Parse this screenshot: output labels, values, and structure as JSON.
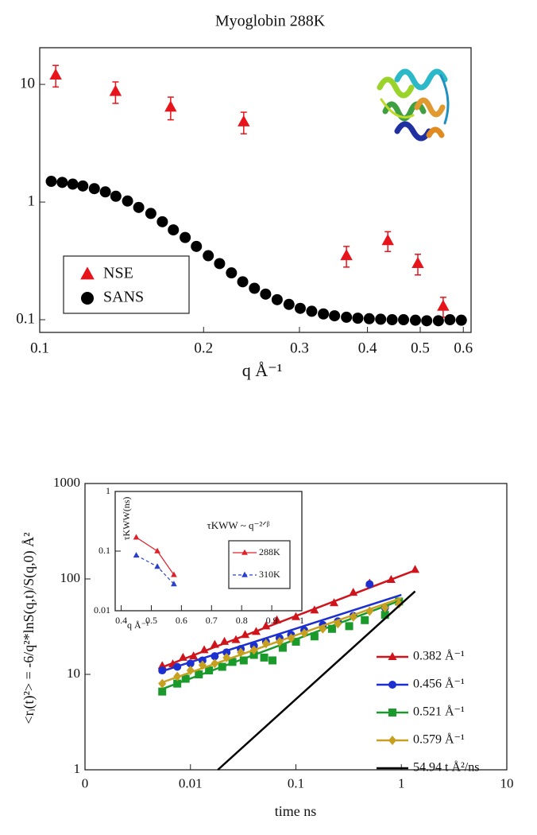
{
  "chart_data": [
    {
      "type": "scatter",
      "title": "Myoglobin 288K",
      "xlabel": "q  Å⁻¹",
      "xscale": "log",
      "yscale": "log",
      "xlim": [
        0.1,
        0.62
      ],
      "ylim": [
        0.078,
        20.5
      ],
      "xticks": [
        0.1,
        0.2,
        0.3,
        0.4,
        0.5,
        0.6
      ],
      "yticks": [
        0.1,
        1,
        10
      ],
      "legend": "lower left",
      "series": [
        {
          "name": "NSE",
          "color": "#e8141b",
          "marker": "triangle",
          "x": [
            0.107,
            0.1378,
            0.174,
            0.237,
            0.366,
            0.436,
            0.495,
            0.551
          ],
          "values": [
            12,
            8.7,
            6.4,
            4.8,
            0.35,
            0.47,
            0.3,
            0.13
          ],
          "errors": [
            2.5,
            1.8,
            1.4,
            1.0,
            0.07,
            0.09,
            0.06,
            0.025
          ]
        },
        {
          "name": "SANS",
          "color": "#000000",
          "marker": "circle",
          "x": [
            0.105,
            0.11,
            0.115,
            0.12,
            0.126,
            0.132,
            0.138,
            0.145,
            0.152,
            0.16,
            0.168,
            0.176,
            0.185,
            0.194,
            0.204,
            0.214,
            0.225,
            0.236,
            0.248,
            0.26,
            0.273,
            0.287,
            0.301,
            0.316,
            0.332,
            0.348,
            0.366,
            0.384,
            0.403,
            0.423,
            0.444,
            0.466,
            0.49,
            0.514,
            0.54,
            0.567,
            0.595
          ],
          "values": [
            1.5,
            1.47,
            1.42,
            1.37,
            1.3,
            1.22,
            1.12,
            1.02,
            0.9,
            0.8,
            0.68,
            0.58,
            0.5,
            0.42,
            0.35,
            0.3,
            0.25,
            0.21,
            0.185,
            0.165,
            0.148,
            0.135,
            0.125,
            0.118,
            0.112,
            0.108,
            0.105,
            0.103,
            0.102,
            0.101,
            0.1,
            0.1,
            0.099,
            0.098,
            0.098,
            0.1,
            0.099
          ]
        }
      ]
    },
    {
      "type": "scatter",
      "xlabel": "time ns",
      "ylabel": "<rᵢ(t)²> = -6/q²*lnS(q,t)/S(q,0) Å²",
      "xscale": "log",
      "yscale": "log",
      "xlim": [
        0.001,
        10
      ],
      "ylim": [
        1,
        1000
      ],
      "xticks": [
        {
          "value": 0.001,
          "label": "0"
        },
        0.01,
        0.1,
        1,
        10
      ],
      "yticks": [
        1,
        10,
        100,
        1000
      ],
      "legend": "lower right",
      "series": [
        {
          "name": "0.382 Å⁻¹",
          "color": "#d0141b",
          "marker": "triangle",
          "x": [
            0.0054,
            0.0068,
            0.0085,
            0.0107,
            0.0135,
            0.017,
            0.021,
            0.027,
            0.033,
            0.042,
            0.052,
            0.066,
            0.1,
            0.15,
            0.23,
            0.35,
            0.5,
            0.8,
            1.35
          ],
          "values": [
            12.3,
            12.8,
            15,
            15.5,
            18,
            20.5,
            22,
            23,
            26,
            28,
            32,
            37,
            40,
            47,
            56,
            72,
            90,
            98,
            125
          ],
          "fit_x": [
            0.005,
            1.4
          ],
          "fit_values": [
            11.5,
            125
          ]
        },
        {
          "name": "0.456 Å⁻¹",
          "color": "#1c2fd0",
          "marker": "circle",
          "x": [
            0.0054,
            0.0075,
            0.01,
            0.013,
            0.017,
            0.022,
            0.03,
            0.04,
            0.052,
            0.07,
            0.09,
            0.12,
            0.18,
            0.25,
            0.35,
            0.5,
            0.7,
            0.95
          ],
          "values": [
            11,
            12,
            13,
            14,
            15.5,
            17,
            18.5,
            20,
            22,
            24,
            26,
            29,
            33,
            36,
            41,
            88,
            50,
            58
          ],
          "fit_x": [
            0.005,
            1.0
          ],
          "fit_values": [
            10.5,
            68
          ]
        },
        {
          "name": "0.521 Å⁻¹",
          "color": "#1a9a2a",
          "marker": "square",
          "x": [
            0.0054,
            0.0075,
            0.009,
            0.012,
            0.015,
            0.02,
            0.025,
            0.032,
            0.04,
            0.05,
            0.06,
            0.075,
            0.1,
            0.15,
            0.22,
            0.32,
            0.45,
            0.7,
            0.95
          ],
          "values": [
            6.6,
            8,
            9,
            10,
            11,
            12,
            13.5,
            14,
            16,
            15,
            14,
            19,
            22,
            25,
            30,
            32,
            37,
            42,
            58
          ],
          "fit_x": [
            0.005,
            1.0
          ],
          "fit_values": [
            6.8,
            60
          ]
        },
        {
          "name": "0.579 Å⁻¹",
          "color": "#c8a020",
          "marker": "diamond",
          "x": [
            0.0054,
            0.0075,
            0.01,
            0.013,
            0.017,
            0.022,
            0.03,
            0.04,
            0.052,
            0.07,
            0.09,
            0.12,
            0.18,
            0.25,
            0.35,
            0.5,
            0.7,
            0.95
          ],
          "values": [
            8,
            9.5,
            11,
            12.5,
            13,
            15,
            17,
            18,
            21,
            22,
            24,
            27,
            30,
            34,
            40,
            46,
            50,
            55
          ],
          "fit_x": [
            0.005,
            1.0
          ],
          "fit_values": [
            8,
            63
          ]
        },
        {
          "name": "54.94 t Å²/ns",
          "color": "#000000",
          "marker": "none",
          "x": [
            0.0182,
            1.35
          ],
          "values": [
            1,
            74.17
          ]
        }
      ]
    },
    {
      "type": "scatter",
      "xlabel": "q Å⁻¹",
      "ylabel": "τKWW(ns)",
      "annotation": "τKWW ~ q⁻²ᐟᵝ",
      "xscale": "linear",
      "yscale": "log",
      "xlim": [
        0.38,
        1.0
      ],
      "ylim": [
        0.01,
        1
      ],
      "xticks": [
        0.4,
        0.5,
        0.6,
        0.7,
        0.8,
        0.9,
        1
      ],
      "yticks": [
        0.01,
        0.1,
        1
      ],
      "legend": "center right",
      "series": [
        {
          "name": "288K",
          "color": "#e0202a",
          "marker": "triangle",
          "connect": "solid",
          "x": [
            0.45,
            0.52,
            0.575
          ],
          "values": [
            0.17,
            0.1,
            0.04
          ]
        },
        {
          "name": "310K",
          "color": "#2a3fd0",
          "marker": "triangle",
          "connect": "dashed",
          "x": [
            0.45,
            0.52,
            0.575
          ],
          "values": [
            0.085,
            0.055,
            0.028
          ]
        }
      ]
    }
  ]
}
